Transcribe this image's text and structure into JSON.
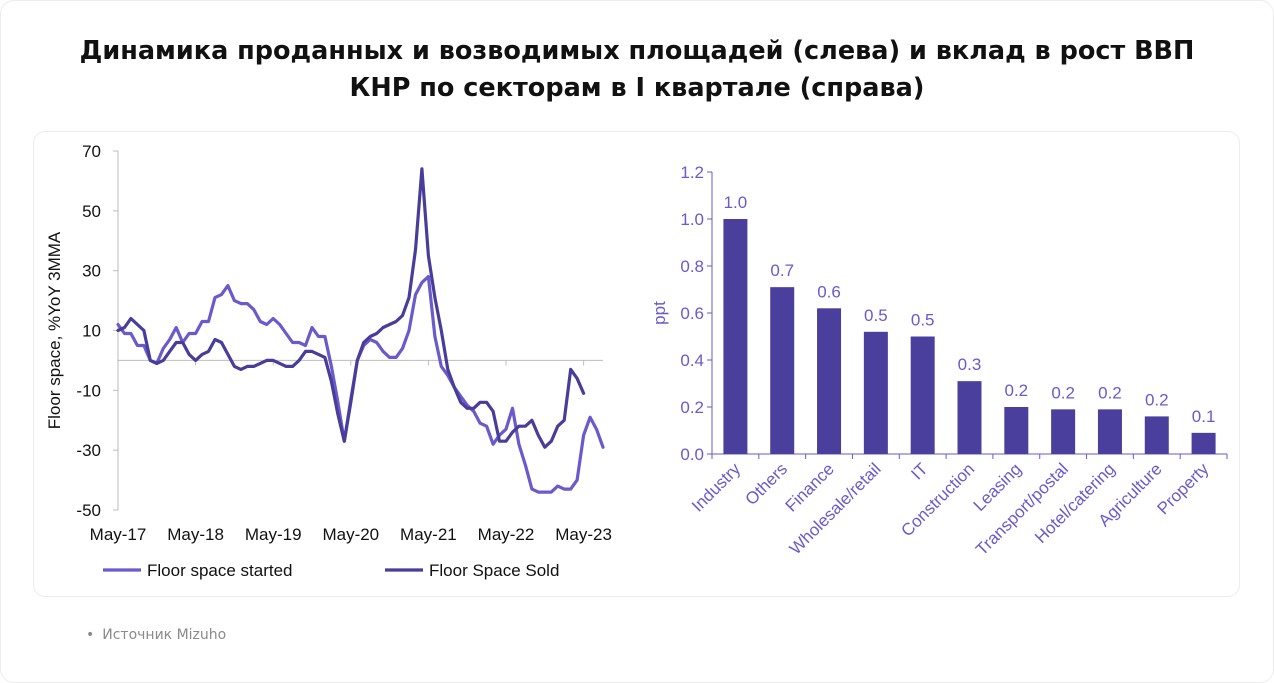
{
  "title_line1": "Динамика проданных и возводимых площадей (слева) и вклад в рост ВВП",
  "title_line2": "КНР по секторам в I квартале (справа)",
  "source": "Источник Mizuho",
  "colors": {
    "started": "#6a5acd",
    "sold": "#483d9b",
    "bars": "#4b3f9e",
    "axis_right": "#6a5acd"
  },
  "chart_data": [
    {
      "type": "line",
      "title": "",
      "xlabel": "",
      "ylabel": "Floor space, %YoY 3MMA",
      "ylim": [
        -50,
        70
      ],
      "yticks": [
        70,
        50,
        30,
        10,
        -10,
        -30,
        -50
      ],
      "xtick_labels": [
        "May-17",
        "May-18",
        "May-19",
        "May-20",
        "May-21",
        "May-22",
        "May-23"
      ],
      "x_range_months": "May-17 to Jul-23",
      "legend": "bottom",
      "series": [
        {
          "name": "Floor space started",
          "values": [
            12,
            9,
            9,
            5,
            5,
            0,
            -1,
            4,
            7,
            11,
            6,
            9,
            9,
            13,
            13,
            21,
            22,
            25,
            20,
            19,
            19,
            17,
            13,
            12,
            14,
            12,
            9,
            6,
            6,
            5,
            11,
            8,
            8,
            -2,
            -14,
            -27,
            -13,
            0,
            5,
            7,
            6,
            3,
            1,
            1,
            4,
            10,
            22,
            26,
            28,
            8,
            -2,
            -5,
            -9,
            -12,
            -15,
            -17,
            -21,
            -22,
            -28,
            -25,
            -23,
            -16,
            -28,
            -35,
            -43,
            -44,
            -44,
            -44,
            -42,
            -43,
            -43,
            -40,
            -25,
            -19,
            -23,
            -29
          ]
        },
        {
          "name": "Floor Space Sold",
          "values": [
            10,
            11,
            14,
            12,
            10,
            0,
            -1,
            0,
            3,
            6,
            6,
            2,
            0,
            2,
            3,
            7,
            6,
            2,
            -2,
            -3,
            -2,
            -2,
            -1,
            0,
            0,
            -1,
            -2,
            -2,
            0,
            3,
            3,
            2,
            1,
            -7,
            -18,
            -27,
            -14,
            0,
            6,
            8,
            9,
            11,
            12,
            13,
            15,
            21,
            37,
            64,
            35,
            21,
            10,
            -3,
            -9,
            -14,
            -16,
            -16,
            -14,
            -14,
            -17,
            -27,
            -27,
            -24,
            -22,
            -22,
            -20,
            -25,
            -29,
            -27,
            -22,
            -20,
            -3,
            -6,
            -11
          ]
        }
      ]
    },
    {
      "type": "bar",
      "title": "",
      "xlabel": "",
      "ylabel": "ppt",
      "ylim": [
        0,
        1.2
      ],
      "yticks": [
        "1.2",
        "1.0",
        "0.8",
        "0.6",
        "0.4",
        "0.2",
        "0.0"
      ],
      "categories": [
        "Industry",
        "Others",
        "Finance",
        "Wholesale/retail",
        "IT",
        "Construction",
        "Leasing",
        "Transport/postal",
        "Hotel/catering",
        "Agriculture",
        "Property"
      ],
      "values": [
        1.0,
        0.71,
        0.62,
        0.52,
        0.5,
        0.31,
        0.2,
        0.19,
        0.19,
        0.16,
        0.09
      ],
      "data_labels": [
        "1.0",
        "0.7",
        "0.6",
        "0.5",
        "0.5",
        "0.3",
        "0.2",
        "0.2",
        "0.2",
        "0.2",
        "0.1"
      ]
    }
  ]
}
